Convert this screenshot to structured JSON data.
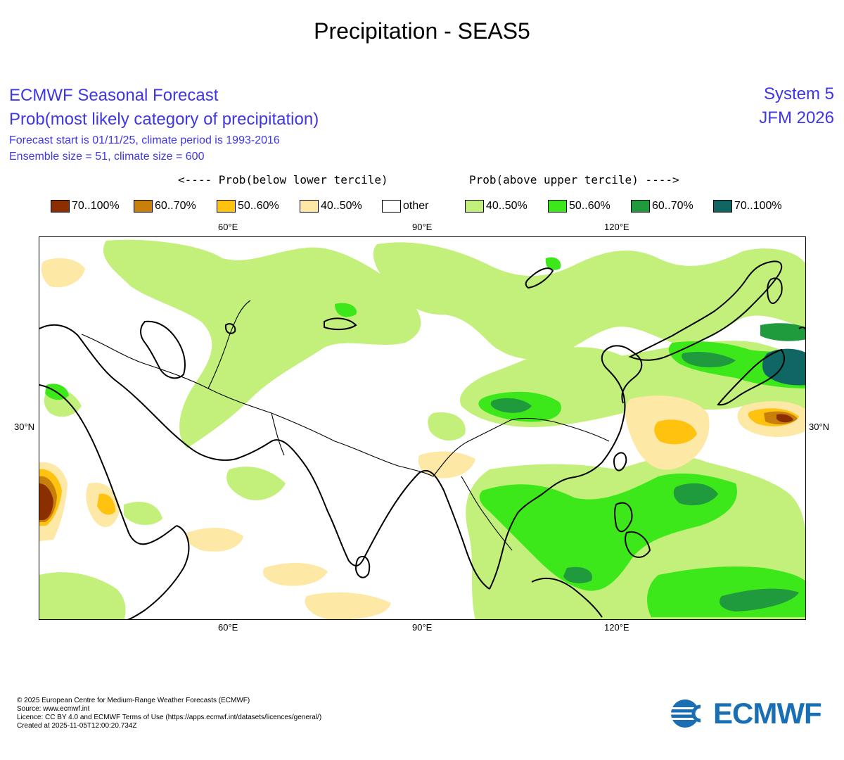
{
  "page_title": "Precipitation - SEAS5",
  "header": {
    "line1": "ECMWF Seasonal Forecast",
    "line2": "Prob(most likely category of precipitation)",
    "line3": "Forecast start is 01/11/25, climate period is 1993-2016",
    "line4": "Ensemble size = 51, climate size = 600",
    "system": "System 5",
    "period": "JFM 2026"
  },
  "legend": {
    "below_caption": "<---- Prob(below lower tercile)",
    "above_caption": "Prob(above upper tercile) ---->",
    "items": [
      {
        "label": "70..100%",
        "color": "#8b2e00"
      },
      {
        "label": "60..70%",
        "color": "#c8800a"
      },
      {
        "label": "50..60%",
        "color": "#ffc20e"
      },
      {
        "label": "40..50%",
        "color": "#fde8a6"
      },
      {
        "label": "other",
        "color": "#ffffff"
      },
      {
        "label": "40..50%",
        "color": "#c2f07a"
      },
      {
        "label": "50..60%",
        "color": "#3de81a"
      },
      {
        "label": "60..70%",
        "color": "#1f9a3c"
      },
      {
        "label": "70..100%",
        "color": "#0f6663"
      }
    ]
  },
  "axes": {
    "lon_ticks": [
      "60°E",
      "90°E",
      "120°E"
    ],
    "lat_ticks": [
      "30°N"
    ]
  },
  "footer": {
    "copyright": "© 2025 European Centre for Medium-Range Weather Forecasts (ECMWF)",
    "source": "Source: www.ecmwf.int",
    "licence": "Licence: CC BY 4.0 and ECMWF Terms of Use (https://apps.ecmwf.int/datasets/licences/general/)",
    "created": "Created at 2025-11-05T12:00:20.734Z"
  },
  "logo_text": "ECMWF"
}
